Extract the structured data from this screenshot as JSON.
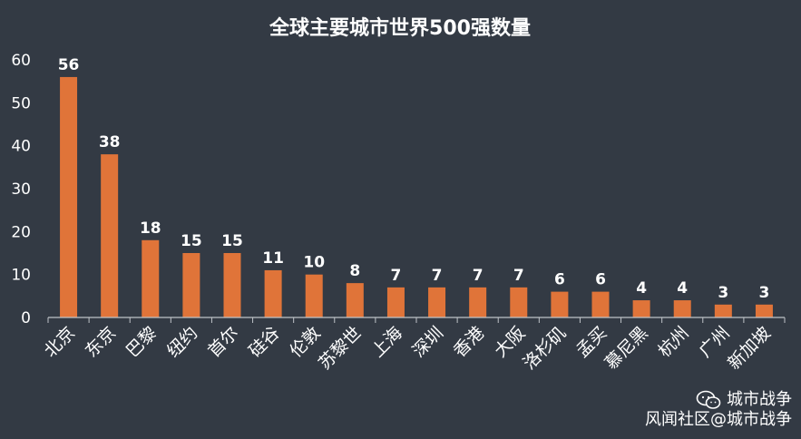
{
  "chart_data": {
    "type": "bar",
    "title": "全球主要城市世界500强数量",
    "categories": [
      "北京",
      "东京",
      "巴黎",
      "纽约",
      "首尔",
      "硅谷",
      "伦敦",
      "苏黎世",
      "上海",
      "深圳",
      "香港",
      "大阪",
      "洛杉矶",
      "孟买",
      "慕尼黑",
      "杭州",
      "广州",
      "新加坡"
    ],
    "values": [
      56,
      38,
      18,
      15,
      15,
      11,
      10,
      8,
      7,
      7,
      7,
      7,
      6,
      6,
      4,
      4,
      3,
      3
    ],
    "ylim": [
      0,
      60
    ],
    "yticks": [
      0,
      10,
      20,
      30,
      40,
      50,
      60
    ],
    "xlabel": "",
    "ylabel": "",
    "grid": false,
    "bar_color": "#e07439",
    "background_color": "#333a44",
    "data_labels": true
  },
  "watermark": {
    "line1": "城市战争",
    "line2": "风闻社区@城市战争",
    "icon": "wechat-icon"
  }
}
